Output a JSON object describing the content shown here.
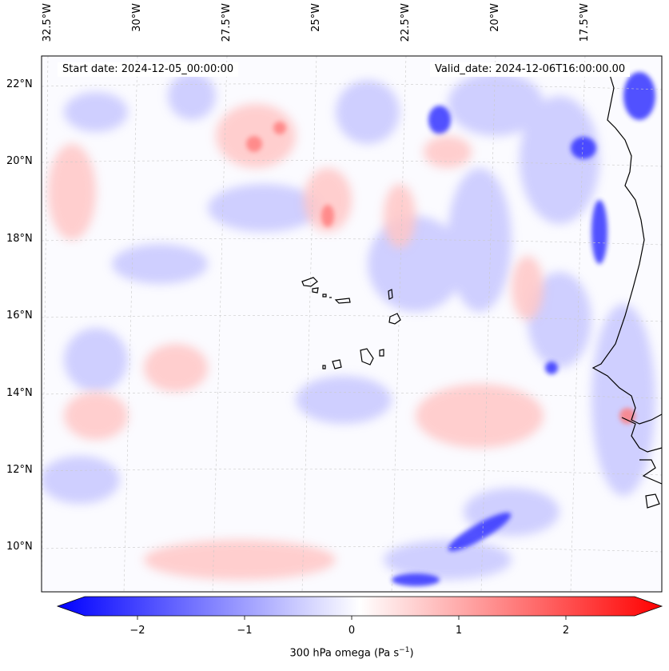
{
  "map": {
    "start_date": "Start date: 2024-12-05_00:00:00",
    "valid_date": "Valid_date: 2024-12-06T16:00:00.00",
    "longitude_labels": [
      "32.5°W",
      "30°W",
      "27.5°W",
      "25°W",
      "22.5°W",
      "20°W",
      "17.5°W"
    ],
    "latitude_labels": [
      "22°N",
      "20°N",
      "18°N",
      "16°N",
      "14°N",
      "12°N",
      "10°N"
    ],
    "region": "Cape Verde Islands and West African coast",
    "colorbar": {
      "label_prefix": "300 hPa omega (Pa s",
      "label_exp": "−1",
      "label_suffix": ")",
      "ticks": [
        "−2",
        "−1",
        "0",
        "1",
        "2"
      ],
      "tick_values": [
        -2,
        -1,
        0,
        1,
        2
      ],
      "range": [
        -2.5,
        2.5
      ],
      "colors": {
        "negative": "#0000ff",
        "zero": "#ffffff",
        "positive": "#ff0000"
      }
    }
  }
}
